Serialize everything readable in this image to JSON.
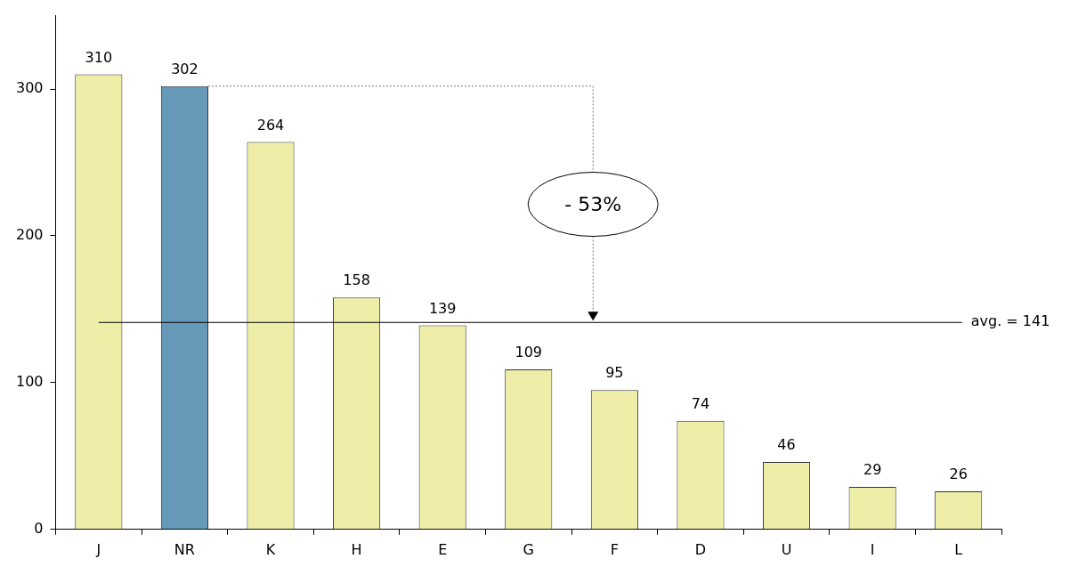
{
  "chart_data": {
    "type": "bar",
    "categories": [
      "J",
      "NR",
      "K",
      "H",
      "E",
      "G",
      "F",
      "D",
      "U",
      "I",
      "L"
    ],
    "values": [
      310,
      302,
      264,
      158,
      139,
      109,
      95,
      74,
      46,
      29,
      26
    ],
    "colors": [
      "#eeeea8",
      "#6699b8",
      "#eeeea8",
      "#eeeea8",
      "#eeeea8",
      "#eeeea8",
      "#eeeea8",
      "#eeeea8",
      "#eeeea8",
      "#eeeea8",
      "#eeeea8"
    ],
    "ylim": [
      0,
      350
    ],
    "yticks": [
      0,
      100,
      200,
      300
    ],
    "grid": false,
    "legend": false,
    "data_labels": true,
    "ref_lines": [
      {
        "axis": "y",
        "value": 141,
        "label": "avg. = 141",
        "color": "#000000"
      }
    ],
    "annotations": [
      "- 53%"
    ]
  }
}
